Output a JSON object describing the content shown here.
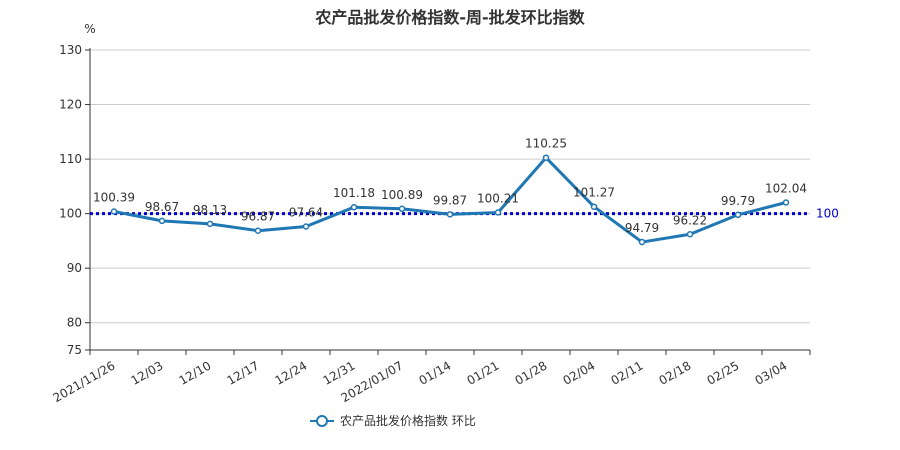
{
  "chart_data": {
    "type": "line",
    "title": "农产品批发价格指数-周-批发环比指数",
    "ylabel": "%",
    "ylim": [
      75,
      130
    ],
    "yticks": [
      75,
      80,
      90,
      100,
      110,
      120,
      130
    ],
    "categories": [
      "2021/11/26",
      "12/03",
      "12/10",
      "12/17",
      "12/24",
      "12/31",
      "2022/01/07",
      "01/14",
      "01/21",
      "01/28",
      "02/04",
      "02/11",
      "02/18",
      "02/25",
      "03/04"
    ],
    "series": [
      {
        "name": "农产品批发价格指数  环比",
        "values": [
          100.39,
          98.67,
          98.13,
          96.87,
          97.64,
          101.18,
          100.89,
          99.87,
          100.21,
          110.25,
          101.27,
          94.79,
          96.22,
          99.79,
          102.04
        ],
        "labels": [
          "100.39",
          "98.67",
          "98.13",
          "96.87",
          "97.64",
          "101.18",
          "100.89",
          "99.87",
          "100.21",
          "110.25",
          "101.27",
          "94.79",
          "96.22",
          "99.79",
          "102.04"
        ]
      }
    ],
    "reference_line": {
      "value": 100,
      "label": "100"
    },
    "grid": true,
    "legend": "bottom",
    "colors": {
      "series": "#1f77b4",
      "reference": "#0000cc",
      "grid": "#cccccc",
      "axis": "#333333",
      "text": "#333333"
    }
  }
}
